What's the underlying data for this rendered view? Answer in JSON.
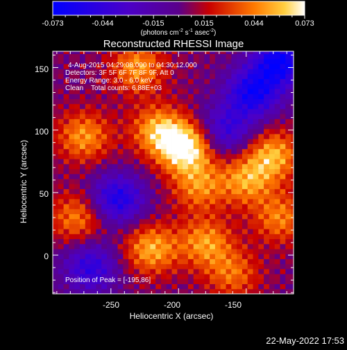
{
  "chart_data": {
    "type": "heatmap",
    "title": "Reconstructed RHESSI Image",
    "colorbar": {
      "ticks": [
        "-0.073",
        "-0.044",
        "-0.015",
        "0.015",
        "0.044",
        "0.073"
      ],
      "range": [
        -0.073,
        0.073
      ],
      "unit_parts": [
        "(photons cm",
        "-2",
        " s",
        "-1",
        " asec",
        "-2",
        ")"
      ]
    },
    "annotations": {
      "time": "4-Aug-2015 04:29:08.000 to 04:30:12.000",
      "detectors": "Detectors: 3F 5F 6F 7F 8F 9F, Att 0",
      "energy": "Energy Range: 3.0 - 6.0 keV",
      "clean": "Clean    Total counts: 6.88E+03",
      "peak": "Position of Peak = [-195,86]"
    },
    "xlabel": "Heliocentric X (arcsec)",
    "ylabel": "Heliocentric Y (arcsec)",
    "xlim": [
      -293,
      -115
    ],
    "ylim": [
      -31,
      163
    ],
    "xticks": [
      -250,
      -200,
      -150
    ],
    "yticks": [
      0,
      50,
      100,
      150
    ],
    "grid": false,
    "peak": {
      "x": -195,
      "y": 86
    },
    "hotspots": [
      {
        "x": -195,
        "y": 86,
        "value": 0.073
      },
      {
        "x": -215,
        "y": 100,
        "value": 0.05
      },
      {
        "x": -270,
        "y": 95,
        "value": 0.045
      },
      {
        "x": -275,
        "y": 30,
        "value": 0.04
      },
      {
        "x": -230,
        "y": 150,
        "value": 0.045
      },
      {
        "x": -150,
        "y": 60,
        "value": 0.045
      },
      {
        "x": -130,
        "y": 80,
        "value": 0.05
      },
      {
        "x": -220,
        "y": 5,
        "value": 0.05
      },
      {
        "x": -180,
        "y": 10,
        "value": 0.045
      },
      {
        "x": -185,
        "y": 55,
        "value": 0.04
      },
      {
        "x": -160,
        "y": -15,
        "value": 0.035
      },
      {
        "x": -125,
        "y": 30,
        "value": 0.04
      }
    ],
    "coldspots": [
      {
        "x": -245,
        "y": 45,
        "value": -0.06
      },
      {
        "x": -145,
        "y": 130,
        "value": -0.065
      },
      {
        "x": -125,
        "y": 155,
        "value": -0.073
      },
      {
        "x": -165,
        "y": 100,
        "value": -0.045
      },
      {
        "x": -265,
        "y": -10,
        "value": -0.05
      }
    ]
  },
  "footer": {
    "date": "22-May-2022 17:53"
  }
}
